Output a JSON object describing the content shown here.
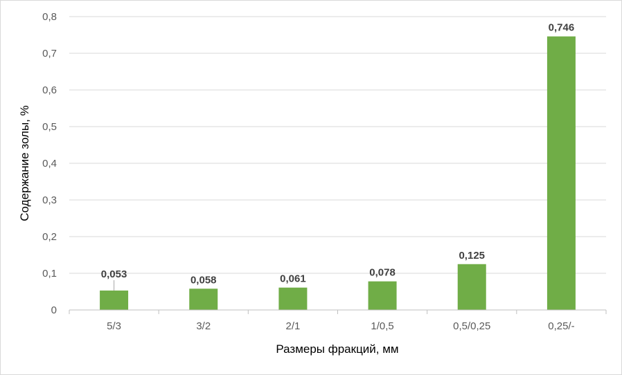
{
  "chart_data": {
    "type": "bar",
    "title": "",
    "xlabel": "Размеры фракций, мм",
    "ylabel": "Содержание золы, %",
    "categories": [
      "5/3",
      "3/2",
      "2/1",
      "1/0,5",
      "0,5/0,25",
      "0,25/-"
    ],
    "values": [
      0.053,
      0.058,
      0.061,
      0.078,
      0.125,
      0.746
    ],
    "data_labels": [
      "0,053",
      "0,058",
      "0,061",
      "0,078",
      "0,125",
      "0,746"
    ],
    "ylim": [
      0,
      0.8
    ],
    "yticks": [
      0,
      0.1,
      0.2,
      0.3,
      0.4,
      0.5,
      0.6,
      0.7,
      0.8
    ],
    "ytick_labels": [
      "0",
      "0,1",
      "0,2",
      "0,3",
      "0,4",
      "0,5",
      "0,6",
      "0,7",
      "0,8"
    ],
    "grid": true,
    "legend": "none",
    "colors": {
      "bar": "#70ad47",
      "grid": "#d9d9d9",
      "axis": "#bfbfbf"
    }
  }
}
